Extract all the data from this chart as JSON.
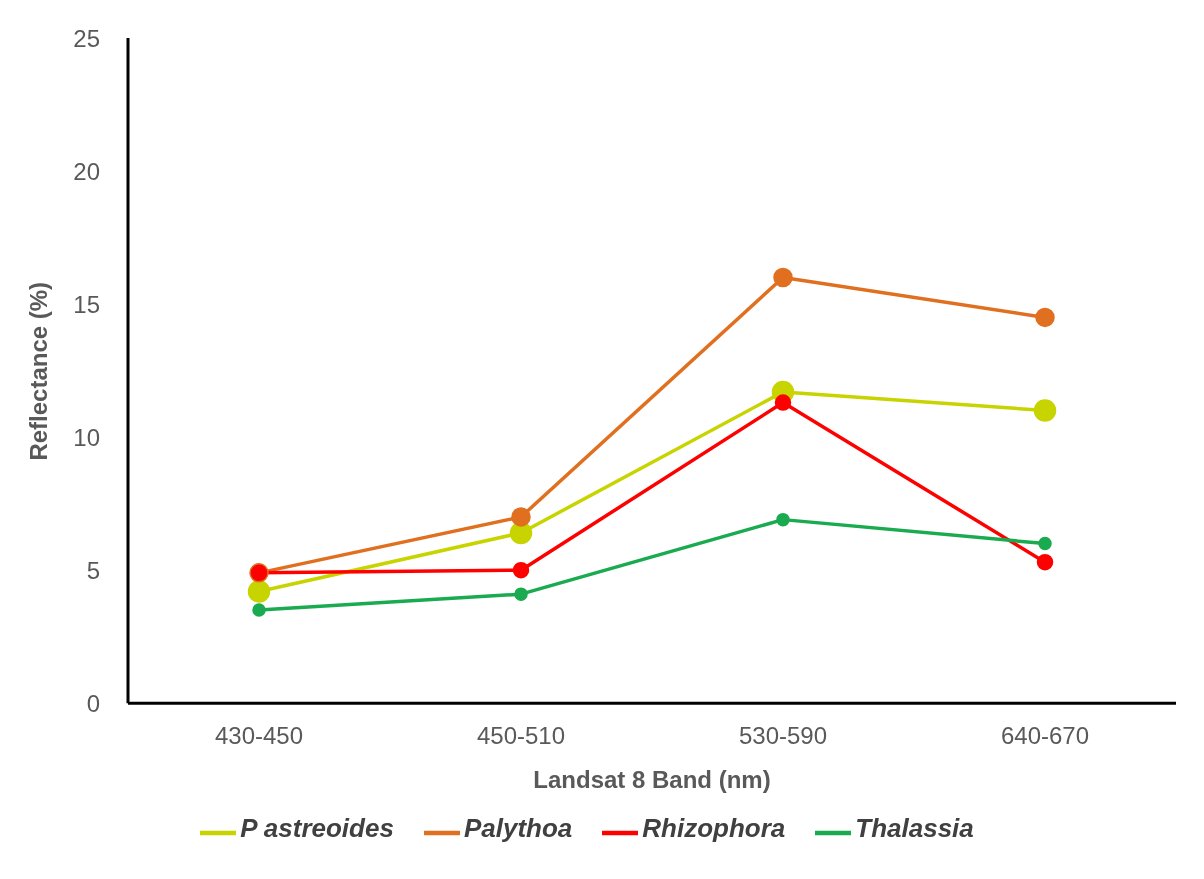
{
  "chart_data": {
    "type": "line",
    "xlabel": "Landsat 8 Band (nm)",
    "ylabel": "Reflectance (%)",
    "categories": [
      "430-450",
      "450-510",
      "530-590",
      "640-670"
    ],
    "series": [
      {
        "name": "P astreoides",
        "color": "#c8d400",
        "values": [
          4.2,
          6.4,
          11.7,
          11.0
        ]
      },
      {
        "name": "Palythoa",
        "color": "#e07020",
        "values": [
          4.9,
          7.0,
          16.0,
          14.5
        ]
      },
      {
        "name": "Rhizophora",
        "color": "#ff0000",
        "values": [
          4.9,
          5.0,
          11.3,
          5.3
        ]
      },
      {
        "name": "Thalassia",
        "color": "#1aaa50",
        "values": [
          3.5,
          4.1,
          6.9,
          6.0
        ]
      }
    ],
    "ylim": [
      0,
      25
    ],
    "yticks": [
      0,
      5,
      10,
      15,
      20,
      25
    ],
    "grid": false,
    "legend": "bottom",
    "marker": "circle",
    "line_style": "solid"
  }
}
